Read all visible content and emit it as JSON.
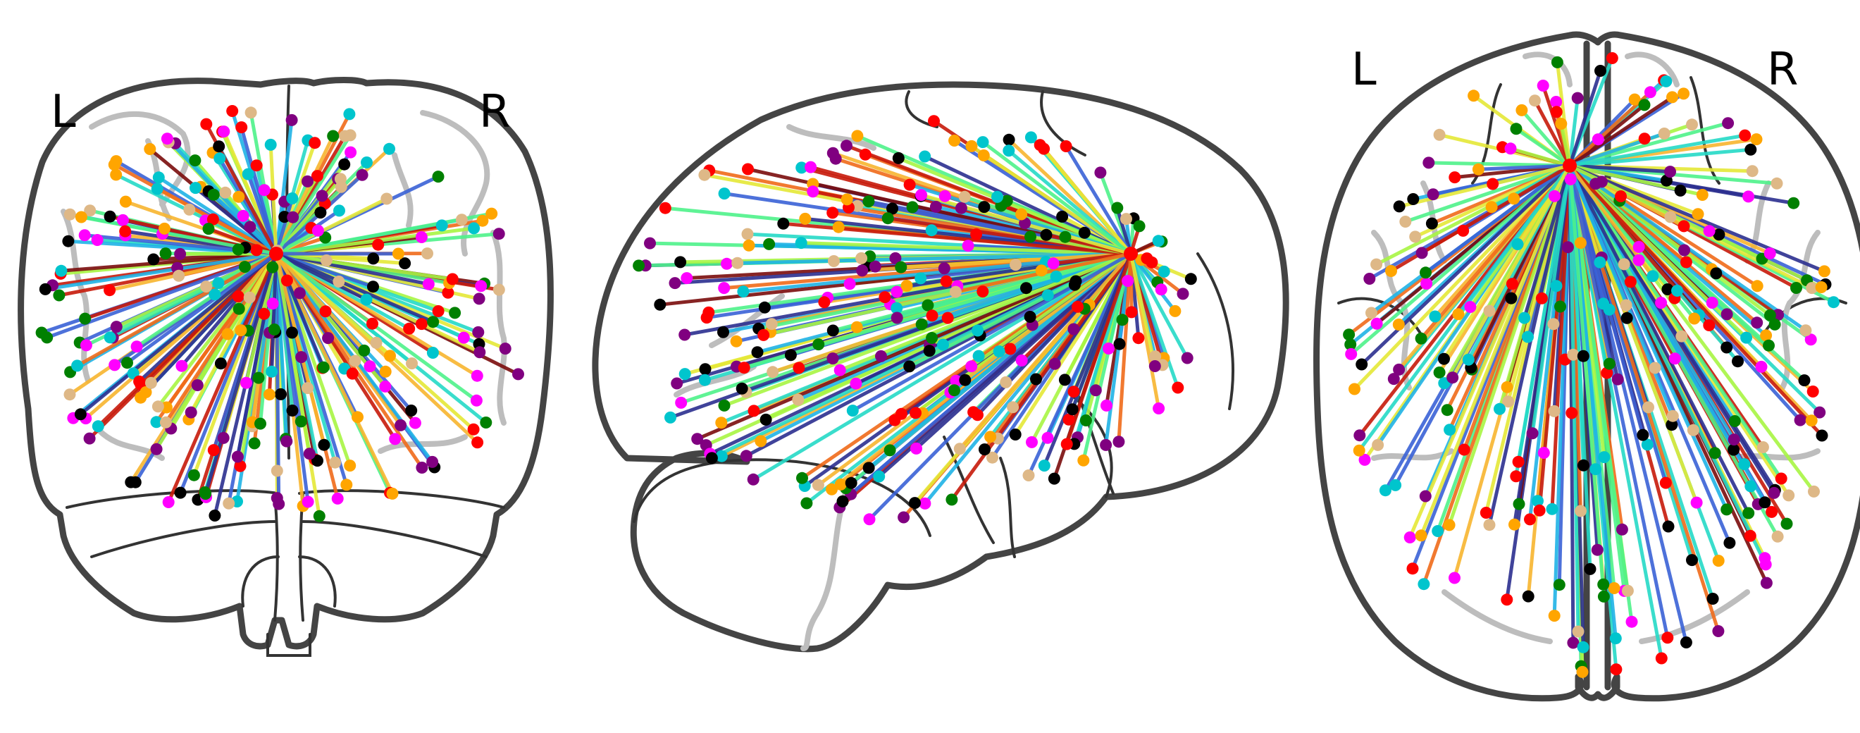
{
  "figure": {
    "views": [
      {
        "id": "coronal",
        "labels": [
          "L",
          "R"
        ]
      },
      {
        "id": "sagittal",
        "labels": []
      },
      {
        "id": "axial",
        "labels": [
          "L",
          "R"
        ]
      }
    ],
    "hub_node_color": "#ff0000",
    "edge_colormap": [
      "#2b2f8f",
      "#3a62d6",
      "#1fb3e6",
      "#25d9c6",
      "#4ef28a",
      "#a7f542",
      "#e4e836",
      "#f7b52f",
      "#f06a1a",
      "#c61a0a",
      "#7a0c0c"
    ],
    "node_palette": [
      "#ff0000",
      "#ffa500",
      "#00c5cd",
      "#ff00ff",
      "#800080",
      "#008000",
      "#000000",
      "#deb887"
    ],
    "node_count_per_view": 260,
    "hub_degree": 260
  }
}
